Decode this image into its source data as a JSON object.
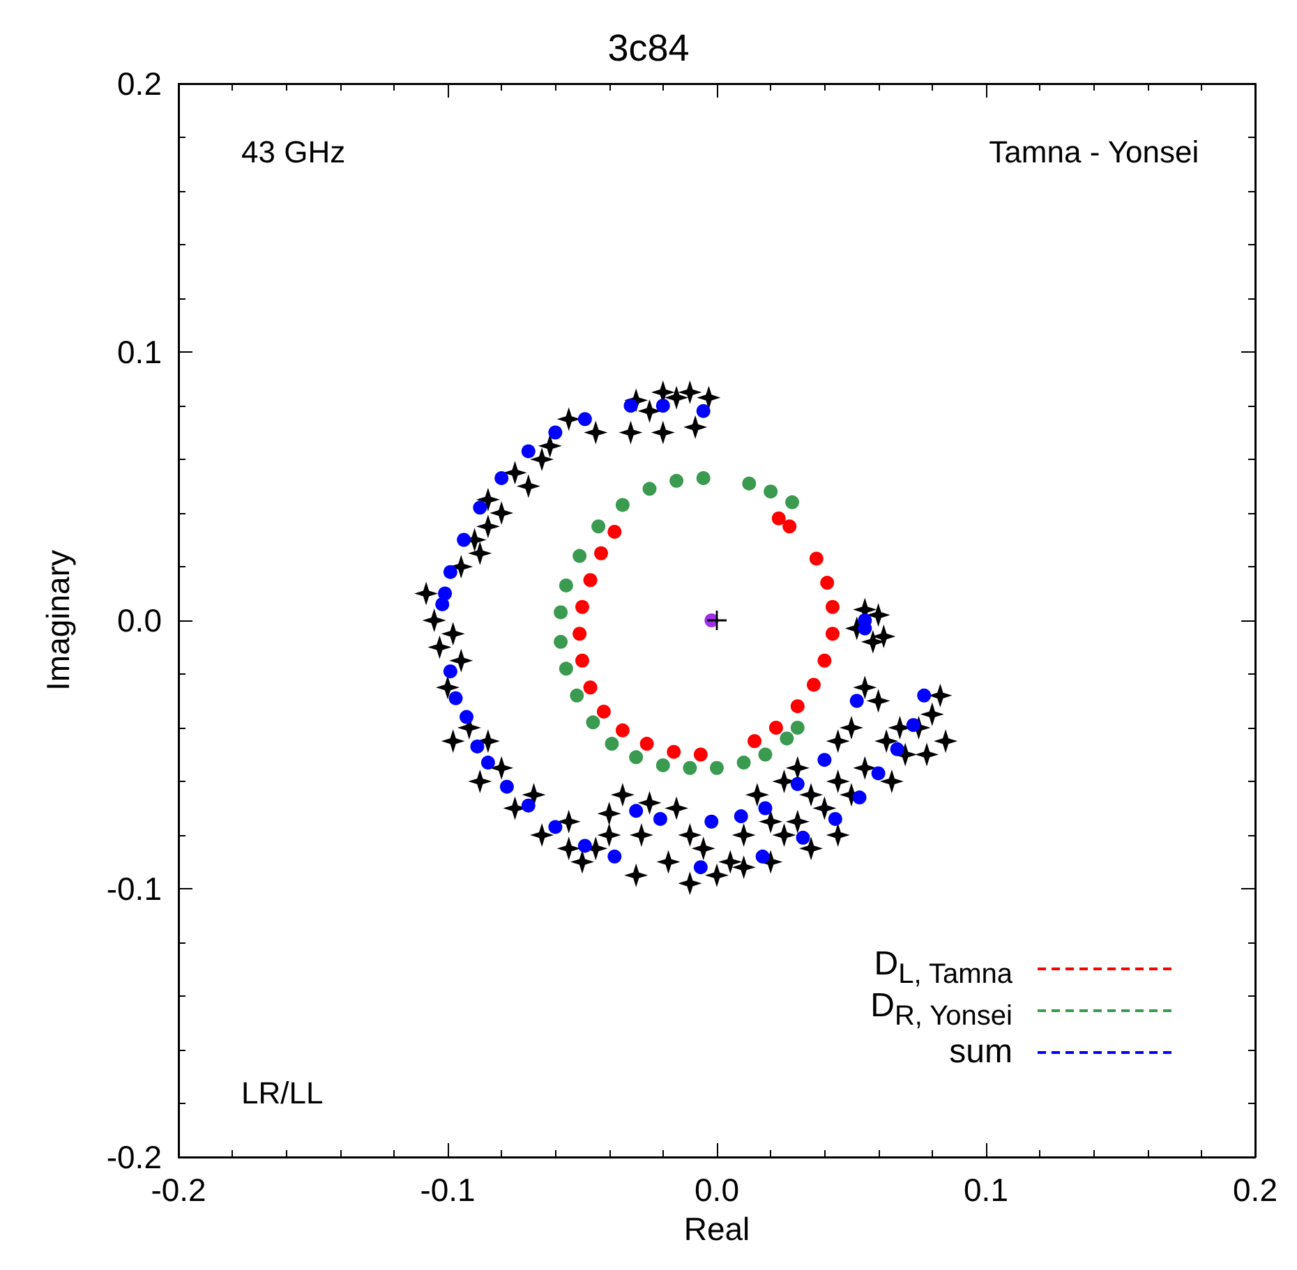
{
  "chart_data": {
    "type": "scatter",
    "title": "3c84",
    "xlabel": "Real",
    "ylabel": "Imaginary",
    "annotations": [
      "43 GHz",
      "Tamna - Yonsei",
      "LR/LL"
    ],
    "xlim": [
      -0.2,
      0.2
    ],
    "ylim": [
      -0.2,
      0.2
    ],
    "xticks": [
      -0.2,
      -0.1,
      {
        "value": 0,
        "label": "0.0"
      },
      0.1,
      0.2
    ],
    "yticks": [
      -0.2,
      -0.1,
      {
        "value": 0,
        "label": "0.0"
      },
      0.1,
      0.2
    ],
    "grid": false,
    "legend": "bottom right",
    "series": [
      {
        "color": "#000000",
        "marker": "star",
        "x": [
          -0.055,
          -0.045,
          -0.065,
          -0.075,
          -0.07,
          -0.085,
          -0.08,
          -0.09,
          -0.095,
          -0.088,
          -0.108,
          -0.105,
          -0.098,
          -0.103,
          -0.095,
          -0.1,
          -0.092,
          -0.098,
          -0.085,
          -0.088,
          -0.08,
          -0.075,
          -0.068,
          -0.065,
          -0.055,
          -0.055,
          -0.045,
          -0.04,
          -0.05,
          -0.085,
          -0.062,
          -0.03,
          -0.02,
          -0.01,
          -0.003,
          -0.025,
          -0.015,
          -0.032,
          -0.02,
          -0.008,
          0.055,
          0.06,
          0.058,
          0.052,
          0.062,
          -0.035,
          -0.025,
          -0.015,
          -0.01,
          -0.005,
          0,
          -0.01,
          0.005,
          -0.018,
          -0.028,
          0.01,
          0.015,
          0.025,
          0.03,
          0.035,
          0.045,
          0.05,
          0.055,
          0.06,
          0.045,
          0.04,
          0.05,
          0.055,
          0.065,
          0.07,
          0.075,
          0.08,
          0.083,
          0.085,
          0.078,
          0.068,
          0.063,
          0.035,
          0.025,
          0.02,
          0.01,
          0.045,
          0.03,
          0.02,
          -0.04,
          -0.03
        ],
        "values": [
          0.075,
          0.07,
          0.06,
          0.055,
          0.05,
          0.045,
          0.04,
          0.03,
          0.02,
          0.025,
          0.01,
          0,
          -0.005,
          -0.01,
          -0.015,
          -0.025,
          -0.04,
          -0.045,
          -0.045,
          -0.06,
          -0.055,
          -0.07,
          -0.065,
          -0.08,
          -0.075,
          -0.085,
          -0.085,
          -0.08,
          -0.09,
          0.035,
          0.065,
          0.082,
          0.085,
          0.085,
          0.083,
          0.078,
          0.083,
          0.07,
          0.07,
          0.072,
          0.004,
          0.002,
          -0.008,
          -0.003,
          -0.006,
          -0.065,
          -0.068,
          -0.07,
          -0.08,
          -0.085,
          -0.095,
          -0.098,
          -0.09,
          -0.09,
          -0.08,
          -0.08,
          -0.065,
          -0.06,
          -0.055,
          -0.065,
          -0.045,
          -0.04,
          -0.025,
          -0.03,
          -0.06,
          -0.07,
          -0.065,
          -0.055,
          -0.06,
          -0.05,
          -0.04,
          -0.035,
          -0.028,
          -0.045,
          -0.05,
          -0.04,
          -0.045,
          -0.085,
          -0.08,
          -0.09,
          -0.092,
          -0.08,
          -0.075,
          -0.075,
          -0.072,
          -0.095
        ]
      },
      {
        "name": "D$_{L, Tamna}$",
        "color": "#ff0000",
        "marker": "circle",
        "x": [
          -0.038,
          -0.043,
          -0.047,
          -0.05,
          -0.051,
          -0.05,
          -0.047,
          -0.042,
          -0.035,
          -0.026,
          -0.016,
          -0.006,
          0.014,
          0.022,
          0.03,
          0.036,
          0.04,
          0.043,
          0.043,
          0.041,
          0.037,
          0.023,
          0.027
        ],
        "values": [
          0.033,
          0.025,
          0.015,
          0.005,
          -0.005,
          -0.015,
          -0.025,
          -0.034,
          -0.041,
          -0.046,
          -0.049,
          -0.05,
          -0.045,
          -0.04,
          -0.032,
          -0.024,
          -0.015,
          -0.005,
          0.005,
          0.014,
          0.023,
          0.038,
          0.035
        ]
      },
      {
        "name": "D$_{R, Yonsei}$",
        "color": "#3a9a50",
        "marker": "circle",
        "x": [
          -0.005,
          -0.015,
          -0.025,
          -0.035,
          -0.044,
          -0.051,
          -0.056,
          -0.058,
          -0.058,
          -0.056,
          -0.052,
          -0.046,
          -0.039,
          -0.03,
          -0.02,
          -0.01,
          0,
          0.01,
          0.018,
          0.026,
          0.03,
          0.012,
          0.02,
          0.028
        ],
        "values": [
          0.053,
          0.052,
          0.049,
          0.043,
          0.035,
          0.024,
          0.013,
          0.003,
          -0.008,
          -0.018,
          -0.028,
          -0.038,
          -0.046,
          -0.051,
          -0.054,
          -0.055,
          -0.055,
          -0.053,
          -0.05,
          -0.044,
          -0.04,
          0.051,
          0.048,
          0.044
        ]
      },
      {
        "name": "sum",
        "color": "#0000ff",
        "marker": "circle",
        "x": [
          -0.049,
          -0.06,
          -0.07,
          -0.08,
          -0.088,
          -0.094,
          -0.099,
          -0.101,
          -0.102,
          -0.099,
          -0.097,
          -0.093,
          -0.089,
          -0.085,
          -0.078,
          -0.07,
          -0.06,
          -0.049,
          -0.038,
          -0.032,
          -0.02,
          -0.005,
          0.055,
          0.055,
          0.077,
          0.073,
          0.067,
          0.06,
          0.053,
          0.044,
          0.032,
          0.017,
          -0.006,
          0.052,
          0.04,
          0.03,
          0.018,
          0.009,
          -0.002,
          -0.021,
          -0.03
        ],
        "values": [
          0.075,
          0.07,
          0.063,
          0.053,
          0.042,
          0.03,
          0.018,
          0.01,
          0.006,
          -0.019,
          -0.029,
          -0.036,
          -0.047,
          -0.053,
          -0.062,
          -0.069,
          -0.077,
          -0.084,
          -0.088,
          0.08,
          0.08,
          0.078,
          0,
          -0.003,
          -0.028,
          -0.039,
          -0.048,
          -0.057,
          -0.066,
          -0.074,
          -0.081,
          -0.088,
          -0.092,
          -0.03,
          -0.052,
          -0.061,
          -0.07,
          -0.073,
          -0.075,
          -0.074,
          -0.071
        ]
      },
      {
        "color": "#a030e8",
        "marker": "circle",
        "x": [
          -0.002
        ],
        "values": [
          0
        ]
      },
      {
        "color": "#000000",
        "marker": "cross",
        "x": [
          0
        ],
        "values": [
          0
        ]
      }
    ]
  }
}
